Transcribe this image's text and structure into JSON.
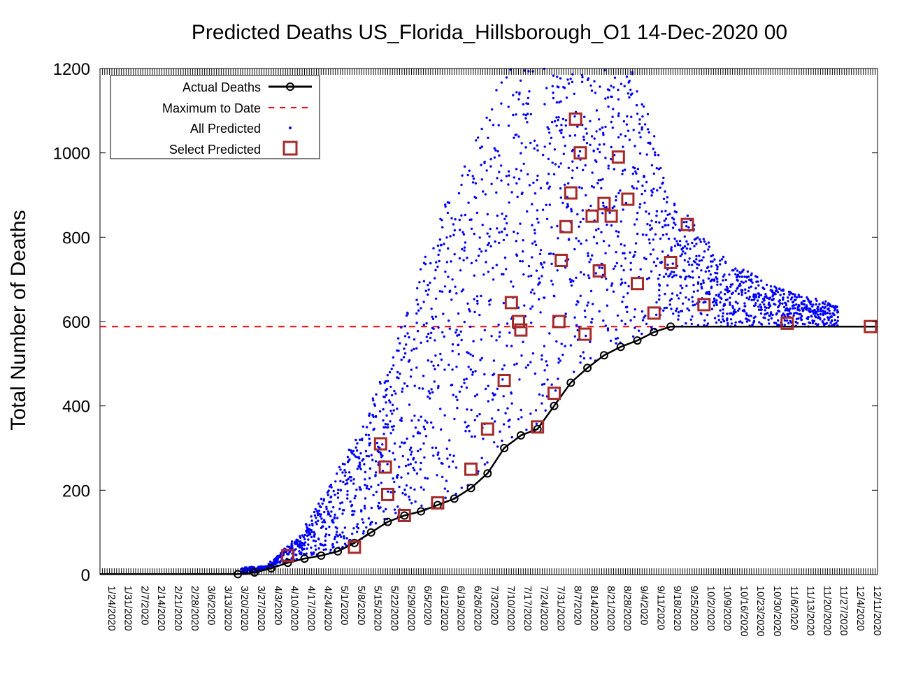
{
  "chart_data": {
    "type": "scatter",
    "title": "Predicted Deaths US_Florida_Hillsborough_O1 14-Dec-2020 00",
    "xlabel": "",
    "ylabel": "Total Number of Deaths",
    "ylim": [
      0,
      1200
    ],
    "yticks": [
      0,
      200,
      400,
      600,
      800,
      1000,
      1200
    ],
    "x_start": "1/22/2020",
    "x_end": "12/14/2020",
    "xtick_labels": [
      "1/24/2020",
      "1/31/2020",
      "2/7/2020",
      "2/14/2020",
      "2/21/2020",
      "2/28/2020",
      "3/6/2020",
      "3/13/2020",
      "3/20/2020",
      "3/27/2020",
      "4/3/2020",
      "4/10/2020",
      "4/17/2020",
      "4/24/2020",
      "5/1/2020",
      "5/8/2020",
      "5/15/2020",
      "5/22/2020",
      "5/29/2020",
      "6/5/2020",
      "6/12/2020",
      "6/19/2020",
      "6/26/2020",
      "7/3/2020",
      "7/10/2020",
      "7/17/2020",
      "7/24/2020",
      "7/31/2020",
      "8/7/2020",
      "8/14/2020",
      "8/21/2020",
      "8/28/2020",
      "9/4/2020",
      "9/11/2020",
      "9/18/2020",
      "9/25/2020",
      "10/2/2020",
      "10/9/2020",
      "10/16/2020",
      "10/23/2020",
      "10/30/2020",
      "11/6/2020",
      "11/13/2020",
      "11/20/2020",
      "11/27/2020",
      "12/4/2020",
      "12/11/2020"
    ],
    "grid": false,
    "legend_position": "top-left",
    "legend": [
      "Actual Deaths",
      "Maximum to Date",
      "All Predicted",
      "Select Predicted"
    ],
    "colors": {
      "actual": "#000000",
      "maximum": "#ff0000",
      "all_predicted": "#0000ff",
      "select_predicted": "#a52a2a"
    },
    "maximum_to_date": 588,
    "series": [
      {
        "name": "Actual Deaths",
        "x": [
          "3/20/2020",
          "3/27/2020",
          "4/3/2020",
          "4/10/2020",
          "4/17/2020",
          "4/24/2020",
          "5/1/2020",
          "5/8/2020",
          "5/15/2020",
          "5/22/2020",
          "5/29/2020",
          "6/5/2020",
          "6/12/2020",
          "6/19/2020",
          "6/26/2020",
          "7/3/2020",
          "7/10/2020",
          "7/17/2020",
          "7/24/2020",
          "7/31/2020",
          "8/7/2020",
          "8/14/2020",
          "8/21/2020",
          "8/28/2020",
          "9/4/2020",
          "9/11/2020",
          "9/18/2020"
        ],
        "y": [
          1,
          5,
          15,
          28,
          38,
          45,
          55,
          75,
          100,
          125,
          140,
          150,
          165,
          180,
          205,
          240,
          300,
          330,
          345,
          400,
          455,
          490,
          520,
          540,
          555,
          575,
          588
        ]
      },
      {
        "name": "Select Predicted",
        "x": [
          "4/10/2020",
          "5/8/2020",
          "5/19/2020",
          "5/21/2020",
          "5/22/2020",
          "5/29/2020",
          "6/12/2020",
          "6/26/2020",
          "7/3/2020",
          "7/10/2020",
          "7/13/2020",
          "7/16/2020",
          "7/17/2020",
          "7/24/2020",
          "7/31/2020",
          "8/2/2020",
          "8/3/2020",
          "8/5/2020",
          "8/7/2020",
          "8/9/2020",
          "8/11/2020",
          "8/13/2020",
          "8/16/2020",
          "8/19/2020",
          "8/21/2020",
          "8/24/2020",
          "8/27/2020",
          "8/31/2020",
          "9/4/2020",
          "9/11/2020",
          "9/18/2020",
          "9/25/2020",
          "10/2/2020",
          "11/6/2020",
          "12/11/2020"
        ],
        "y": [
          45,
          65,
          310,
          255,
          190,
          140,
          170,
          250,
          345,
          460,
          645,
          600,
          580,
          350,
          430,
          600,
          745,
          825,
          905,
          1080,
          1000,
          570,
          850,
          720,
          880,
          850,
          990,
          890,
          690,
          620,
          740,
          830,
          640,
          596,
          588
        ]
      }
    ]
  }
}
